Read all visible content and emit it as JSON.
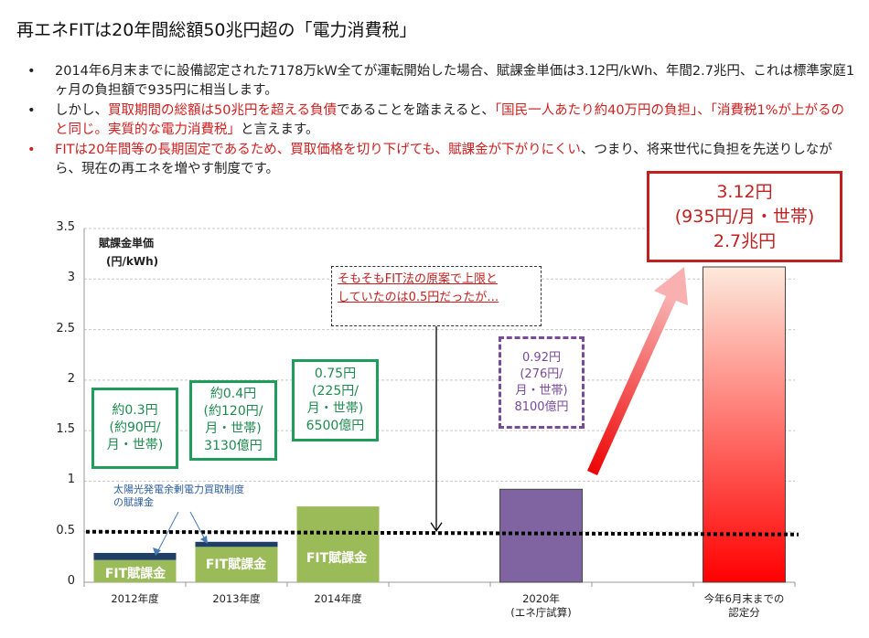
{
  "title": "再エネFITは20年間総額50兆円超の「電力消費税」",
  "bullets": [
    {
      "bullet_color": "#222222",
      "segments": [
        {
          "text": "2014年6月末までに設備認定された7178万kW全てが運転開始した場合、賦課金単価は3.12円/kWh、年間2.7兆円、これは標準家庭1ヶ月の負担額で935円に相当します。",
          "red": false
        }
      ]
    },
    {
      "bullet_color": "#222222",
      "segments": [
        {
          "text": "しかし、",
          "red": false
        },
        {
          "text": "買取期間の総額は50兆円を超える負債",
          "red": true
        },
        {
          "text": "であることを踏まえると、",
          "red": false
        },
        {
          "text": "「国民一人あたり約40万円の負担」、「消費税1%が上がるのと同じ。実質的な電力消費税」",
          "red": true
        },
        {
          "text": "と言えます。",
          "red": false
        }
      ]
    },
    {
      "bullet_color": "#d02020",
      "segments": [
        {
          "text": "FITは20年間等の長期固定であるため、買取価格を切り下げても、賦課金が下がりにくい",
          "red": true
        },
        {
          "text": "、つまり、将来世代に負担を先送りしながら、現在の再エネを増やす制度です。",
          "red": false
        }
      ]
    }
  ],
  "bullet_symbol": "•",
  "chart_data": {
    "type": "bar",
    "ylabel": [
      "賦課金単価",
      "(円/kWh)"
    ],
    "ylim": [
      0,
      3.5
    ],
    "yticks": [
      "0",
      "0.5",
      "1",
      "1.5",
      "2",
      "2.5",
      "3",
      "3.5"
    ],
    "grid": true,
    "categories": [
      [
        "2012年度"
      ],
      [
        "2013年度"
      ],
      [
        "2014年度"
      ],
      [
        ""
      ],
      [
        "2020年",
        "(エネ庁試算)"
      ],
      [
        ""
      ],
      [
        "今年6月末までの",
        "認定分"
      ]
    ],
    "series": [
      {
        "name": "FIT賦課金",
        "values": [
          0.22,
          0.35,
          0.75,
          null,
          null,
          null,
          null
        ],
        "color": "#9bbb59"
      },
      {
        "name": "太陽光発電余剰電力買取制度の賦課金",
        "values": [
          0.07,
          0.05,
          null,
          null,
          null,
          null,
          null
        ],
        "color": "#1f3f66"
      },
      {
        "name": "2020年試算",
        "values": [
          null,
          null,
          null,
          null,
          0.92,
          null,
          null
        ],
        "color": "#8064a2"
      },
      {
        "name": "認定分",
        "values": [
          null,
          null,
          null,
          null,
          null,
          null,
          3.12
        ],
        "color_top": "#fde9dc",
        "color_bottom": "#ff0000"
      }
    ],
    "bar_labels": [
      "FIT賦課金",
      "FIT賦課金",
      "FIT賦課金"
    ],
    "reference_line": {
      "value": 0.5,
      "style": "dotted"
    },
    "annotations": {
      "solar_note": [
        "太陽光発電余剰電力買取制度",
        "の賦課金"
      ],
      "box_2012": [
        "約0.3円",
        "(約90円/",
        "月・世帯)"
      ],
      "box_2013": [
        "約0.4円",
        "(約120円/",
        "月・世帯)",
        "3130億円"
      ],
      "box_2014": [
        "0.75円",
        "(225円/",
        "月・世帯)",
        "6500億円"
      ],
      "box_2020": [
        "0.92円",
        "(276円/",
        "月・世帯)",
        "8100億円"
      ],
      "original_cap_note": [
        "そもそもFIT法の原案で上限と",
        "していたのは0.5円だったが…"
      ],
      "box_current": [
        "3.12円",
        "(935円/月・世帯)",
        "2.7兆円"
      ]
    }
  }
}
